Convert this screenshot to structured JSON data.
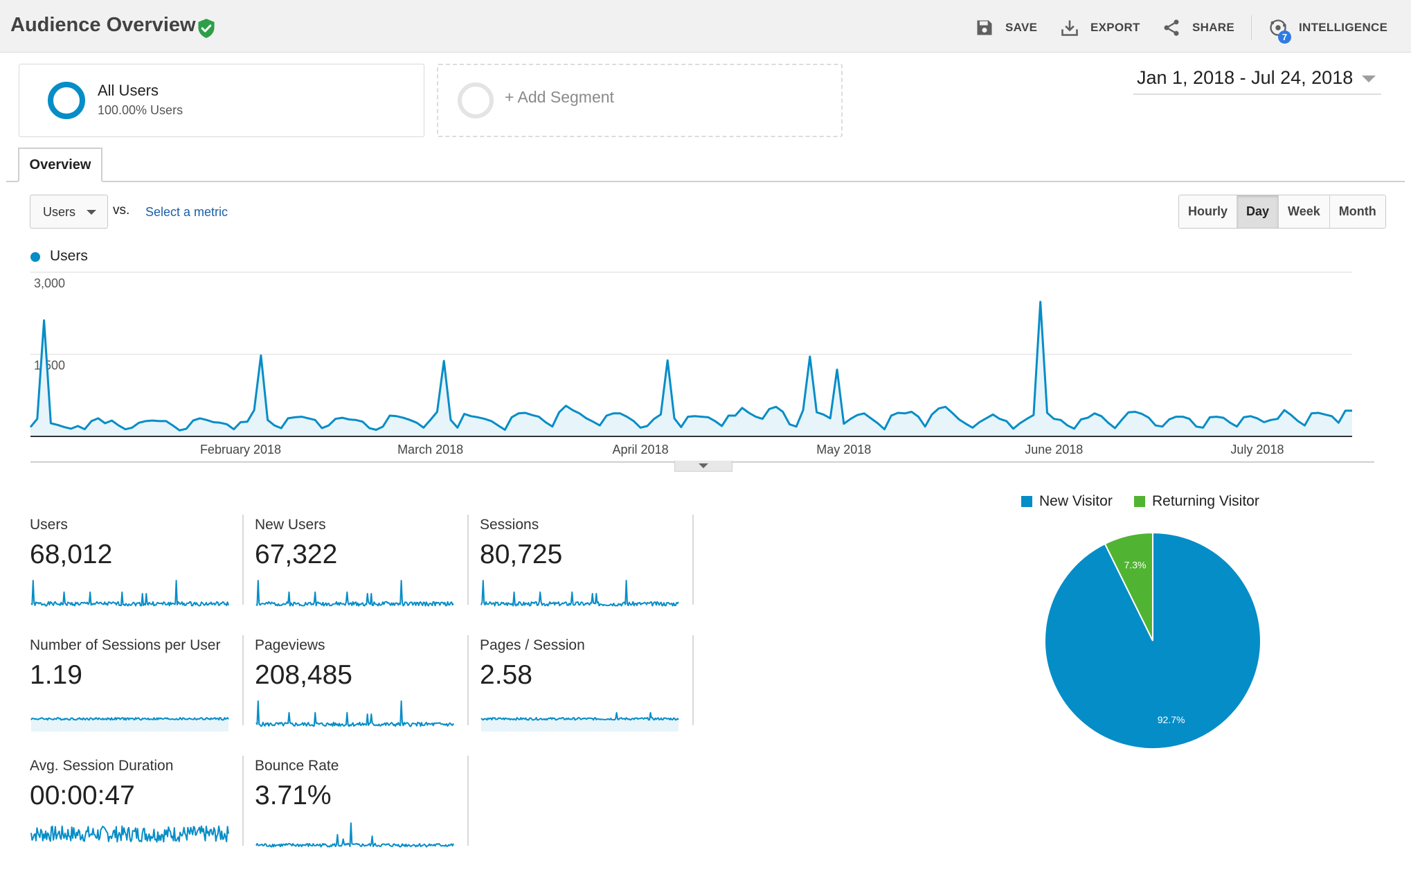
{
  "header": {
    "title": "Audience Overview",
    "actions": {
      "save": "SAVE",
      "export": "EXPORT",
      "share": "SHARE",
      "intelligence": "INTELLIGENCE",
      "intelligence_badge": "7"
    }
  },
  "segments": {
    "all_users": {
      "title": "All Users",
      "subtitle": "100.00% Users"
    },
    "add_segment": "+ Add Segment"
  },
  "date_range": "Jan 1, 2018 - Jul 24, 2018",
  "tabs": [
    "Overview"
  ],
  "controls": {
    "metric": "Users",
    "vs": "vs.",
    "select_metric": "Select a metric",
    "granularity": [
      "Hourly",
      "Day",
      "Week",
      "Month"
    ],
    "granularity_active": "Day"
  },
  "colors": {
    "accent": "#058dc7",
    "returning": "#50b432",
    "link": "#1a5fa8"
  },
  "chart_data": [
    {
      "type": "area",
      "legend": "Users",
      "ylim": [
        0,
        3000
      ],
      "yticks": [
        {
          "value": 3000,
          "label": "3,000"
        },
        {
          "value": 1500,
          "label": "1,500"
        }
      ],
      "x_labels": [
        {
          "day": 31,
          "label": "February 2018"
        },
        {
          "day": 59,
          "label": "March 2018"
        },
        {
          "day": 90,
          "label": "April 2018"
        },
        {
          "day": 120,
          "label": "May 2018"
        },
        {
          "day": 151,
          "label": "June 2018"
        },
        {
          "day": 181,
          "label": "July 2018"
        }
      ],
      "series": [
        {
          "name": "Users",
          "values": [
            170,
            320,
            2120,
            240,
            210,
            170,
            140,
            190,
            130,
            280,
            330,
            240,
            290,
            200,
            130,
            160,
            250,
            280,
            290,
            280,
            280,
            200,
            110,
            140,
            290,
            330,
            300,
            260,
            250,
            220,
            130,
            260,
            270,
            480,
            1480,
            300,
            200,
            150,
            330,
            350,
            360,
            330,
            300,
            150,
            200,
            320,
            340,
            310,
            300,
            270,
            150,
            120,
            180,
            380,
            370,
            340,
            300,
            250,
            160,
            300,
            450,
            1380,
            300,
            160,
            410,
            370,
            350,
            320,
            280,
            200,
            120,
            350,
            420,
            430,
            390,
            360,
            260,
            180,
            440,
            560,
            480,
            420,
            330,
            270,
            200,
            380,
            420,
            420,
            360,
            280,
            160,
            190,
            320,
            400,
            1390,
            330,
            170,
            360,
            370,
            360,
            350,
            280,
            190,
            380,
            380,
            520,
            430,
            360,
            320,
            500,
            540,
            450,
            220,
            180,
            480,
            1460,
            440,
            400,
            330,
            1220,
            230,
            320,
            390,
            420,
            330,
            240,
            130,
            380,
            430,
            420,
            450,
            360,
            180,
            400,
            510,
            540,
            430,
            310,
            230,
            160,
            260,
            330,
            400,
            320,
            280,
            140,
            240,
            320,
            390,
            2460,
            430,
            320,
            300,
            200,
            140,
            310,
            340,
            420,
            370,
            250,
            150,
            300,
            440,
            450,
            410,
            340,
            200,
            180,
            310,
            360,
            360,
            320,
            180,
            160,
            350,
            360,
            340,
            250,
            180,
            350,
            370,
            330,
            260,
            300,
            320,
            480,
            390,
            280,
            200,
            420,
            430,
            400,
            370,
            250,
            470,
            470
          ]
        }
      ]
    },
    {
      "type": "pie",
      "legend": [
        "New Visitor",
        "Returning Visitor"
      ],
      "series": [
        {
          "name": "New Visitor",
          "value": 92.7,
          "label": "92.7%",
          "color": "#058dc7"
        },
        {
          "name": "Returning Visitor",
          "value": 7.3,
          "label": "7.3%",
          "color": "#50b432"
        }
      ]
    }
  ],
  "metrics": [
    {
      "label": "Users",
      "value": "68,012",
      "spark": "spiky",
      "seed": 1
    },
    {
      "label": "New Users",
      "value": "67,322",
      "spark": "spiky",
      "seed": 2
    },
    {
      "label": "Sessions",
      "value": "80,725",
      "spark": "spiky",
      "seed": 3
    },
    {
      "label": "Number of Sessions per User",
      "value": "1.19",
      "spark": "flat",
      "seed": 4
    },
    {
      "label": "Pageviews",
      "value": "208,485",
      "spark": "spiky2",
      "seed": 5
    },
    {
      "label": "Pages / Session",
      "value": "2.58",
      "spark": "flat2",
      "seed": 6
    },
    {
      "label": "Avg. Session Duration",
      "value": "00:00:47",
      "spark": "noisy",
      "seed": 7
    },
    {
      "label": "Bounce Rate",
      "value": "3.71%",
      "spark": "bounce",
      "seed": 8
    }
  ]
}
